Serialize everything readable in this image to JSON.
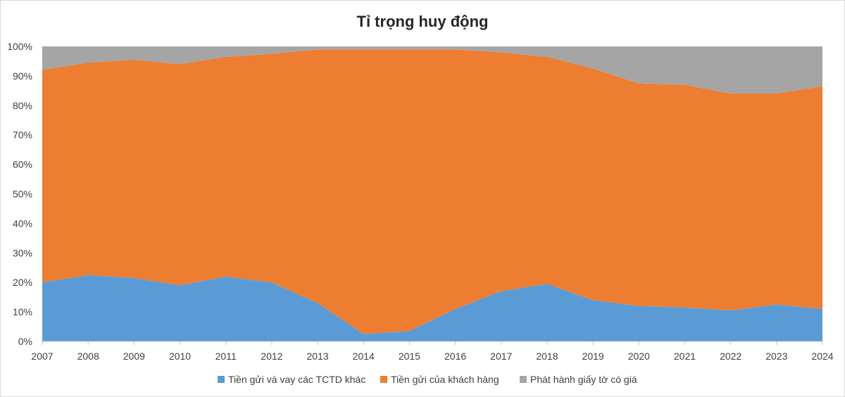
{
  "chart_data": {
    "type": "area",
    "stacked": "percent",
    "title": "Tỉ trọng huy động",
    "xlabel": "",
    "ylabel": "",
    "x": [
      "2007",
      "2008",
      "2009",
      "2010",
      "2011",
      "2012",
      "2013",
      "2014",
      "2015",
      "2016",
      "2017",
      "2018",
      "2019",
      "2020",
      "2021",
      "2022",
      "2023",
      "2024"
    ],
    "ylim": [
      0,
      100
    ],
    "y_ticks": [
      "0%",
      "10%",
      "20%",
      "30%",
      "40%",
      "50%",
      "60%",
      "70%",
      "80%",
      "90%",
      "100%"
    ],
    "legend_position": "bottom",
    "grid": false,
    "series": [
      {
        "name": "Tiền gửi và vay các TCTD khác",
        "color": "#5B9BD5",
        "values": [
          20,
          22.5,
          21.5,
          19,
          22,
          20,
          13,
          2.5,
          3.5,
          11,
          17,
          19.5,
          14,
          12,
          11.5,
          10.5,
          12.5,
          11
        ]
      },
      {
        "name": "Tiền gửi của khách hàng",
        "color": "#ED7D31",
        "values": [
          72,
          72,
          74,
          75,
          74.5,
          77.5,
          86,
          96.5,
          95.5,
          88,
          81,
          77,
          78.5,
          75.5,
          75.5,
          73.5,
          71.5,
          75.5
        ]
      },
      {
        "name": "Phát hành giấy tờ có giá",
        "color": "#A5A5A5",
        "values": [
          8,
          5.5,
          4.5,
          6,
          3.5,
          2.5,
          1,
          1,
          1,
          1,
          2,
          3.5,
          7.5,
          12.5,
          13,
          16,
          16,
          13.5
        ]
      }
    ]
  }
}
